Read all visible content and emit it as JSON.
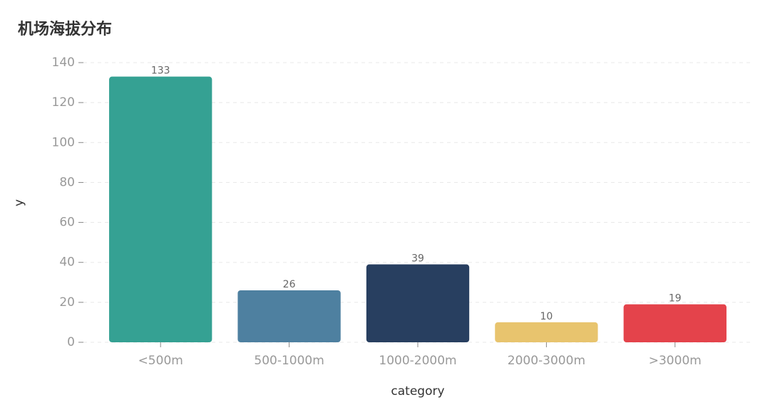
{
  "chart_data": {
    "type": "bar",
    "title": "机场海拔分布",
    "categories": [
      "<500m",
      "500-1000m",
      "1000-2000m",
      "2000-3000m",
      ">3000m"
    ],
    "values": [
      133,
      26,
      39,
      10,
      19
    ],
    "colors": [
      "#35a193",
      "#4e80a0",
      "#283f60",
      "#e8c46e",
      "#e4434b"
    ],
    "x_label": "category",
    "y_label": "y",
    "ylim": [
      0,
      140
    ],
    "yticks": [
      0,
      20,
      40,
      60,
      80,
      100,
      120,
      140
    ],
    "grid": true
  }
}
